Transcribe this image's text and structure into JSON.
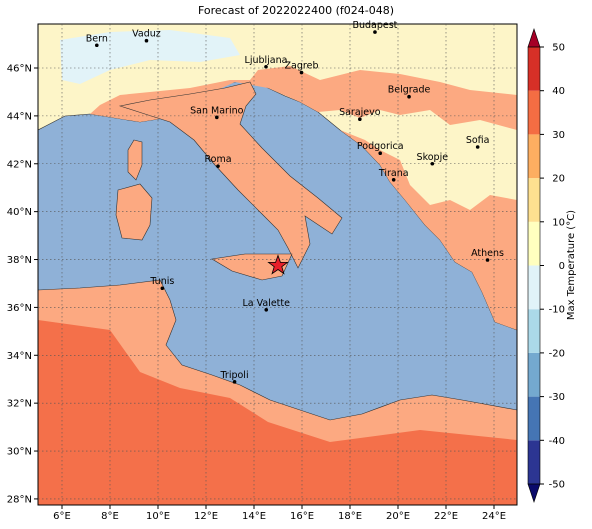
{
  "title": "Forecast of 2022022400 (f024-048)",
  "x_tick_labels": [
    "6°E",
    "8°E",
    "10°E",
    "12°E",
    "14°E",
    "16°E",
    "18°E",
    "20°E",
    "22°E",
    "24°E"
  ],
  "y_tick_labels": [
    "28°N",
    "30°N",
    "32°N",
    "34°N",
    "36°N",
    "38°N",
    "40°N",
    "42°N",
    "44°N",
    "46°N"
  ],
  "cities": [
    "Bern",
    "Vaduz",
    "Budapest",
    "Ljubljana",
    "Zagreb",
    "Belgrade",
    "San Marino",
    "Sarajevo",
    "Roma",
    "Podgorica",
    "Skopje",
    "Sofia",
    "Tirana",
    "Athens",
    "Tunis",
    "La Valette",
    "Tripoli"
  ],
  "colorbar": {
    "label": "Max Temperature (°C)",
    "ticks": [
      -50,
      -40,
      -30,
      -20,
      -10,
      0,
      10,
      20,
      30,
      40,
      50
    ]
  }
}
